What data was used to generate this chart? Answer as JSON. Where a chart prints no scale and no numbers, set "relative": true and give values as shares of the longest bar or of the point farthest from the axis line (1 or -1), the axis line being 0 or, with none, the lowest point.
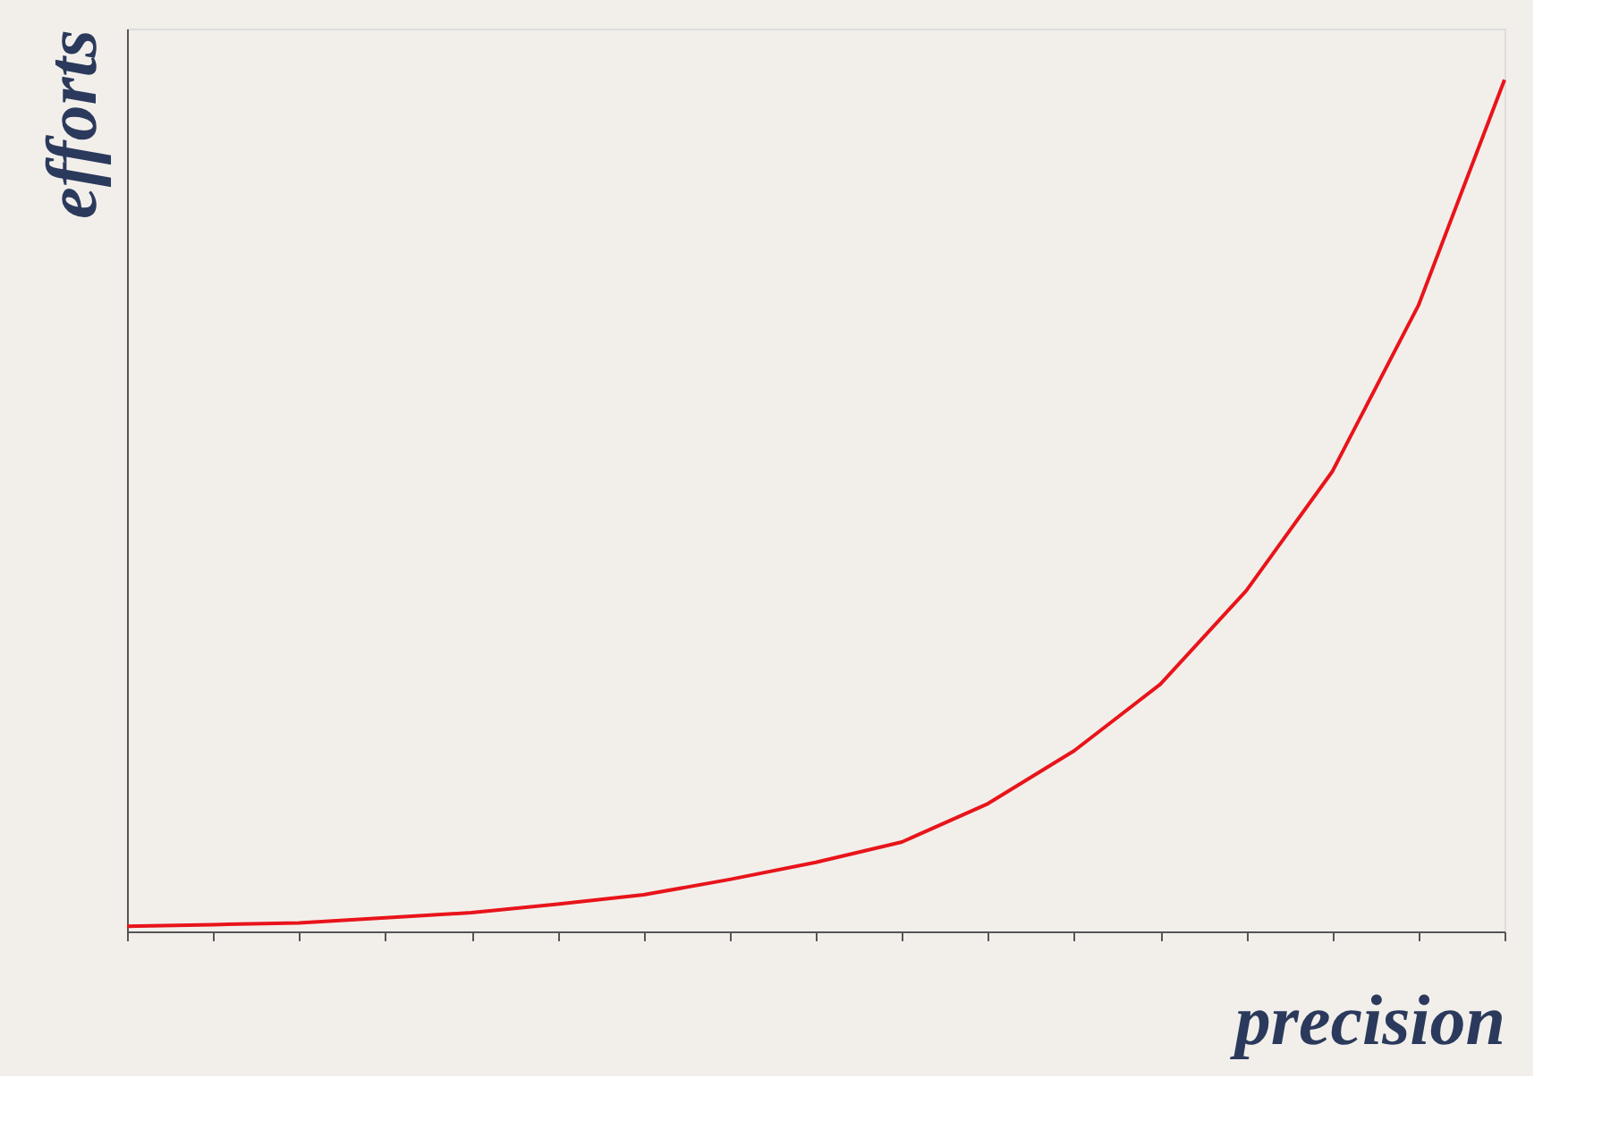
{
  "chart_data": {
    "type": "line",
    "xlabel": "precision",
    "ylabel": "efforts",
    "relative": true,
    "grid": false,
    "marker": "none",
    "line_style": "solid",
    "categories": [
      null,
      null,
      null,
      null,
      null,
      null,
      null,
      null,
      null,
      null,
      null,
      null,
      null,
      null,
      null,
      null,
      null
    ],
    "series": [
      {
        "color": "#e8141a",
        "values": [
          0.006,
          0.008,
          0.01,
          0.016,
          0.022,
          0.032,
          0.043,
          0.061,
          0.081,
          0.105,
          0.15,
          0.212,
          0.29,
          0.4,
          0.54,
          0.735,
          1.0
        ]
      }
    ]
  }
}
